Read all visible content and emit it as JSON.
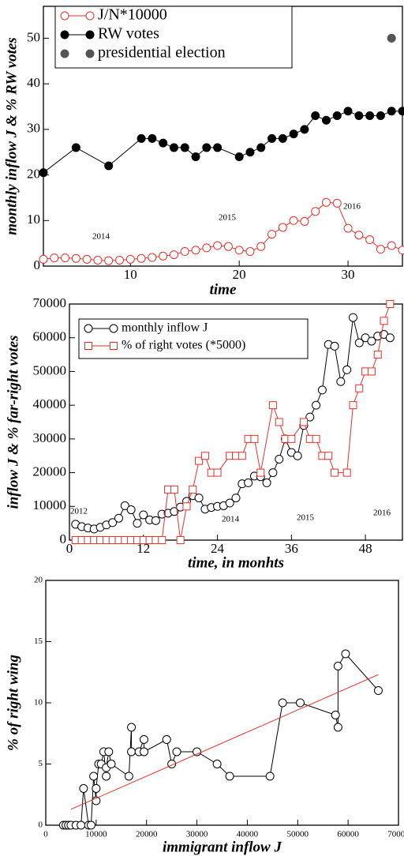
{
  "chart_data": [
    {
      "type": "line",
      "x_label": "time",
      "y_label": "monthly inflow J &  % RW votes",
      "xlim": [
        2,
        35
      ],
      "xticks": [
        10,
        20,
        30
      ],
      "ylim": [
        0,
        57
      ],
      "yticks": [
        0,
        10,
        20,
        30,
        40,
        50
      ],
      "annotations": [
        "2014",
        "2015",
        "2016"
      ],
      "series": [
        {
          "name": "J/N*10000",
          "color": "#e8302a",
          "marker": "circle",
          "filled": false,
          "connected": true,
          "x": [
            2,
            3,
            4,
            5,
            6,
            7,
            8,
            9,
            10,
            11,
            12,
            13,
            14,
            15,
            16,
            17,
            18,
            19,
            20,
            21,
            22,
            23,
            24,
            25,
            26,
            27,
            28,
            29,
            30,
            31,
            32,
            33,
            34,
            35
          ],
          "values": [
            1.5,
            1.8,
            1.8,
            1.7,
            1.5,
            1.3,
            1.2,
            1.3,
            1.5,
            1.7,
            1.9,
            2.2,
            2.5,
            3.2,
            3.5,
            4,
            4.5,
            4.3,
            3.5,
            3.2,
            4.3,
            7,
            8.5,
            10,
            9.8,
            12,
            14,
            13.8,
            8.3,
            6.8,
            5.8,
            3.7,
            4.5,
            3.5
          ]
        },
        {
          "name": "RW votes",
          "color": "#000000",
          "marker": "circle",
          "filled": true,
          "connected": true,
          "x": [
            2,
            5,
            8,
            11,
            12,
            13,
            14,
            15,
            16,
            17,
            18,
            20,
            21,
            22,
            23,
            24,
            25,
            26,
            27,
            28,
            29,
            30,
            31,
            32,
            33,
            34,
            35
          ],
          "values": [
            20.5,
            26,
            22,
            28,
            28,
            27,
            26,
            26,
            24,
            26,
            26,
            24,
            25,
            26,
            28,
            28,
            29,
            30,
            33,
            32,
            33,
            34,
            33,
            33,
            33,
            34,
            34
          ]
        },
        {
          "name": "presidential election",
          "color": "#555555",
          "marker": "circle",
          "filled": true,
          "connected": false,
          "x": [
            34
          ],
          "values": [
            50
          ]
        }
      ]
    },
    {
      "type": "line",
      "x_label": "time, in monhts",
      "y_label": "inflow J & % far-right votes",
      "xlim": [
        0,
        54
      ],
      "xticks": [
        0,
        12,
        24,
        36,
        48
      ],
      "ylim": [
        0,
        70000
      ],
      "yticks": [
        0,
        10000,
        20000,
        30000,
        40000,
        50000,
        60000,
        70000
      ],
      "annotations": [
        "2012",
        "2014",
        "2015",
        "2016"
      ],
      "series": [
        {
          "name": "monthly inflow J",
          "color": "#000000",
          "marker": "circle",
          "filled": false,
          "connected": true,
          "x": [
            1,
            2,
            3,
            4,
            5,
            6,
            7,
            8,
            9,
            10,
            11,
            12,
            13,
            14,
            15,
            16,
            17,
            18,
            19,
            20,
            21,
            22,
            23,
            24,
            25,
            26,
            27,
            28,
            29,
            30,
            31,
            32,
            33,
            34,
            35,
            36,
            37,
            38,
            39,
            40,
            41,
            42,
            43,
            44,
            45,
            46,
            47,
            48,
            49,
            50,
            51,
            52
          ],
          "values": [
            4700,
            4000,
            3600,
            3300,
            3800,
            4500,
            5200,
            6500,
            10200,
            9000,
            5000,
            7500,
            6000,
            5800,
            7700,
            8000,
            8500,
            9800,
            11500,
            13200,
            12500,
            9200,
            9700,
            10000,
            10200,
            11000,
            12500,
            16700,
            17000,
            19000,
            18800,
            17000,
            20000,
            24000,
            30000,
            26000,
            25000,
            34000,
            36500,
            40000,
            44500,
            58000,
            57500,
            47000,
            50500,
            66000,
            58500,
            60000,
            59000,
            60500,
            61000,
            60000
          ]
        },
        {
          "name": "% of right votes (*5000)",
          "color": "#e8302a",
          "marker": "square",
          "filled": false,
          "connected": true,
          "x": [
            1,
            2,
            3,
            4,
            5,
            6,
            7,
            8,
            9,
            10,
            11,
            12,
            13,
            14,
            15,
            16,
            17,
            18,
            19,
            20,
            21,
            22,
            23,
            24,
            26,
            27,
            28,
            29,
            30,
            31,
            33,
            34,
            35,
            36,
            38,
            39,
            40,
            41,
            42,
            43,
            45,
            46,
            47,
            48,
            49,
            50,
            51,
            52
          ],
          "values": [
            0,
            0,
            0,
            0,
            0,
            0,
            0,
            0,
            0,
            0,
            0,
            0,
            0,
            0,
            0,
            15000,
            15000,
            0,
            10000,
            15000,
            23500,
            25000,
            20000,
            20000,
            25000,
            25000,
            25000,
            30000,
            30000,
            20000,
            40000,
            35000,
            30000,
            30000,
            35000,
            30000,
            30000,
            25000,
            25000,
            20000,
            20000,
            40000,
            45000,
            50000,
            50000,
            55000,
            65000,
            70000
          ]
        }
      ]
    },
    {
      "type": "scatter",
      "x_label": "immigrant inflow J",
      "y_label": "% of right wing",
      "xlim": [
        0,
        70000
      ],
      "xticks": [
        0,
        10000,
        20000,
        30000,
        40000,
        50000,
        60000,
        70000
      ],
      "ylim": [
        0,
        20
      ],
      "yticks": [
        0,
        5,
        10,
        15,
        20
      ],
      "series": [
        {
          "color": "#000000",
          "marker": "circle",
          "filled": false,
          "connected": true,
          "x": [
            3500,
            4000,
            4500,
            5000,
            6000,
            7000,
            7500,
            8500,
            9000,
            9500,
            10000,
            10000,
            10500,
            11000,
            11500,
            12000,
            12000,
            12500,
            13000,
            16500,
            17000,
            17000,
            18500,
            19500,
            19500,
            24000,
            25000,
            26000,
            30000,
            34000,
            36500,
            44500,
            47000,
            50500,
            57500,
            58000,
            58000,
            59500,
            66000
          ],
          "values": [
            0,
            0,
            0,
            0,
            0,
            0,
            3,
            0,
            0,
            4,
            2,
            3,
            5,
            5,
            6,
            4,
            4.7,
            6,
            5,
            4,
            8,
            6,
            6,
            7,
            6,
            7,
            5,
            6,
            6,
            5,
            4,
            4,
            10,
            10,
            9,
            8,
            13,
            14,
            11
          ]
        },
        {
          "color": "#e8302a",
          "marker": "none",
          "filled": false,
          "connected": true,
          "x": [
            5000,
            66000
          ],
          "values": [
            1.3,
            12.3
          ]
        }
      ]
    }
  ]
}
